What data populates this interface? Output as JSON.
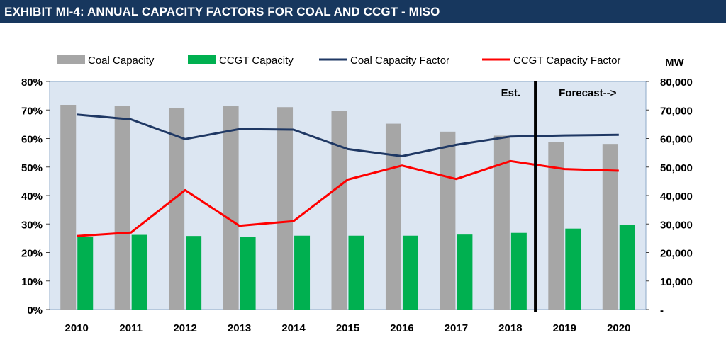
{
  "header": {
    "title": "EXHIBIT MI-4: ANNUAL CAPACITY FACTORS FOR COAL AND CCGT - MISO"
  },
  "colors": {
    "coal_bar": "#a6a6a6",
    "ccgt_bar": "#00b050",
    "coal_line": "#1f3864",
    "ccgt_line": "#ff0000",
    "plot_bg": "#dce6f2",
    "divider": "#000000"
  },
  "chart_data": {
    "type": "bar",
    "categories": [
      "2010",
      "2011",
      "2012",
      "2013",
      "2014",
      "2015",
      "2016",
      "2017",
      "2018",
      "2019",
      "2020"
    ],
    "series": [
      {
        "name": "Coal Capacity",
        "type": "bar",
        "axis": "right",
        "values": [
          71800,
          71500,
          70600,
          71300,
          71000,
          69600,
          65200,
          62400,
          61000,
          58700,
          58100
        ]
      },
      {
        "name": "CCGT Capacity",
        "type": "bar",
        "axis": "right",
        "values": [
          25500,
          26200,
          25800,
          25500,
          25900,
          25900,
          25900,
          26300,
          26900,
          28400,
          29800
        ]
      },
      {
        "name": "Coal Capacity Factor",
        "type": "line",
        "axis": "left",
        "values": [
          0.684,
          0.667,
          0.598,
          0.633,
          0.631,
          0.563,
          0.538,
          0.578,
          0.607,
          0.611,
          0.613
        ]
      },
      {
        "name": "CCGT Capacity Factor",
        "type": "line",
        "axis": "left",
        "values": [
          0.258,
          0.27,
          0.419,
          0.294,
          0.31,
          0.456,
          0.505,
          0.458,
          0.521,
          0.493,
          0.487
        ]
      }
    ],
    "left_axis": {
      "ylim": [
        0,
        0.8
      ],
      "ticks": [
        "0%",
        "10%",
        "20%",
        "30%",
        "40%",
        "50%",
        "60%",
        "70%",
        "80%"
      ]
    },
    "right_axis": {
      "label": "MW",
      "ylim": [
        0,
        80000
      ],
      "ticks": [
        "-",
        "10,000",
        "20,000",
        "30,000",
        "40,000",
        "50,000",
        "60,000",
        "70,000",
        "80,000"
      ]
    },
    "annotations": {
      "estimate_label": "Est.",
      "forecast_label": "Forecast-->",
      "divider_between": [
        "2018",
        "2019"
      ]
    },
    "legend": "top",
    "grid": false
  }
}
